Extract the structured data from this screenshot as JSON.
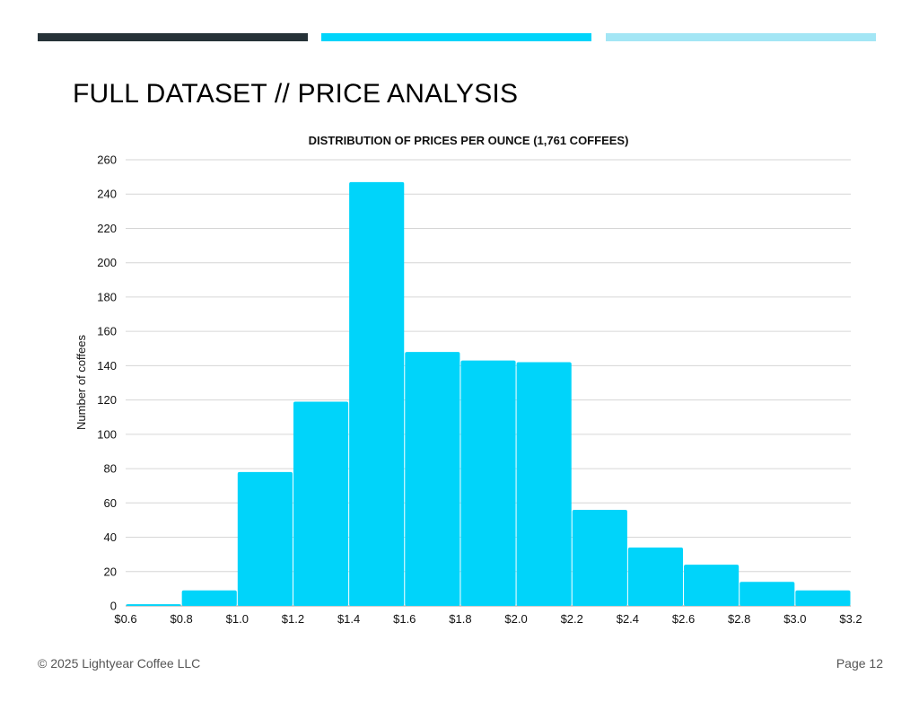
{
  "header": {
    "accent_colors": [
      "#263238",
      "#00d4fa",
      "#a3e6f5"
    ],
    "title": "FULL DATASET // PRICE ANALYSIS"
  },
  "chart_data": {
    "type": "bar",
    "title": "DISTRIBUTION OF PRICES PER OUNCE (1,761 COFFEES)",
    "xlabel": "",
    "ylabel": "Number of coffees",
    "bin_edges": [
      0.6,
      0.8,
      1.0,
      1.2,
      1.4,
      1.6,
      1.8,
      2.0,
      2.2,
      2.4,
      2.6,
      2.8,
      3.0,
      3.2
    ],
    "values": [
      1,
      9,
      78,
      119,
      247,
      148,
      143,
      142,
      56,
      34,
      24,
      14,
      9
    ],
    "x_tick_labels": [
      "$0.6",
      "$0.8",
      "$1.0",
      "$1.2",
      "$1.4",
      "$1.6",
      "$1.8",
      "$2.0",
      "$2.2",
      "$2.4",
      "$2.6",
      "$2.8",
      "$3.0",
      "$3.2"
    ],
    "y_ticks": [
      0,
      20,
      40,
      60,
      80,
      100,
      120,
      140,
      160,
      180,
      200,
      220,
      240,
      260
    ],
    "ylim": [
      0,
      260
    ],
    "xlim": [
      0.6,
      3.2
    ],
    "grid": "horizontal",
    "bar_color": "#00d4fa",
    "legend": "none"
  },
  "footer": {
    "copyright": "© 2025 Lightyear Coffee LLC",
    "page": "Page 12"
  }
}
